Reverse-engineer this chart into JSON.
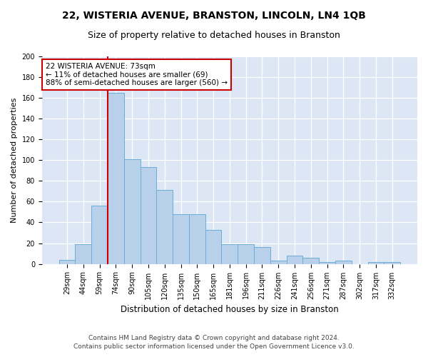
{
  "title1": "22, WISTERIA AVENUE, BRANSTON, LINCOLN, LN4 1QB",
  "title2": "Size of property relative to detached houses in Branston",
  "xlabel": "Distribution of detached houses by size in Branston",
  "ylabel": "Number of detached properties",
  "categories": [
    "29sqm",
    "44sqm",
    "59sqm",
    "74sqm",
    "90sqm",
    "105sqm",
    "120sqm",
    "135sqm",
    "150sqm",
    "165sqm",
    "181sqm",
    "196sqm",
    "211sqm",
    "226sqm",
    "241sqm",
    "256sqm",
    "271sqm",
    "287sqm",
    "302sqm",
    "317sqm",
    "332sqm"
  ],
  "values": [
    4,
    19,
    56,
    165,
    101,
    93,
    71,
    48,
    48,
    33,
    19,
    19,
    16,
    3,
    8,
    6,
    2,
    3,
    0,
    2,
    2
  ],
  "bar_color": "#b8d0ea",
  "bar_edge_color": "#6aaed6",
  "vline_color": "#cc0000",
  "vline_x_index": 3,
  "annotation_title": "22 WISTERIA AVENUE: 73sqm",
  "annotation_line1": "← 11% of detached houses are smaller (69)",
  "annotation_line2": "88% of semi-detached houses are larger (560) →",
  "annotation_box_color": "#ffffff",
  "annotation_box_edge": "#cc0000",
  "ylim": [
    0,
    200
  ],
  "yticks": [
    0,
    20,
    40,
    60,
    80,
    100,
    120,
    140,
    160,
    180,
    200
  ],
  "footnote1": "Contains HM Land Registry data © Crown copyright and database right 2024.",
  "footnote2": "Contains public sector information licensed under the Open Government Licence v3.0.",
  "fig_bg_color": "#ffffff",
  "plot_bg_color": "#dce6f5",
  "grid_color": "#ffffff",
  "title1_fontsize": 10,
  "title2_fontsize": 9,
  "annotation_fontsize": 7.5,
  "ylabel_fontsize": 8,
  "xlabel_fontsize": 8.5,
  "footnote_fontsize": 6.5,
  "tick_fontsize": 7
}
